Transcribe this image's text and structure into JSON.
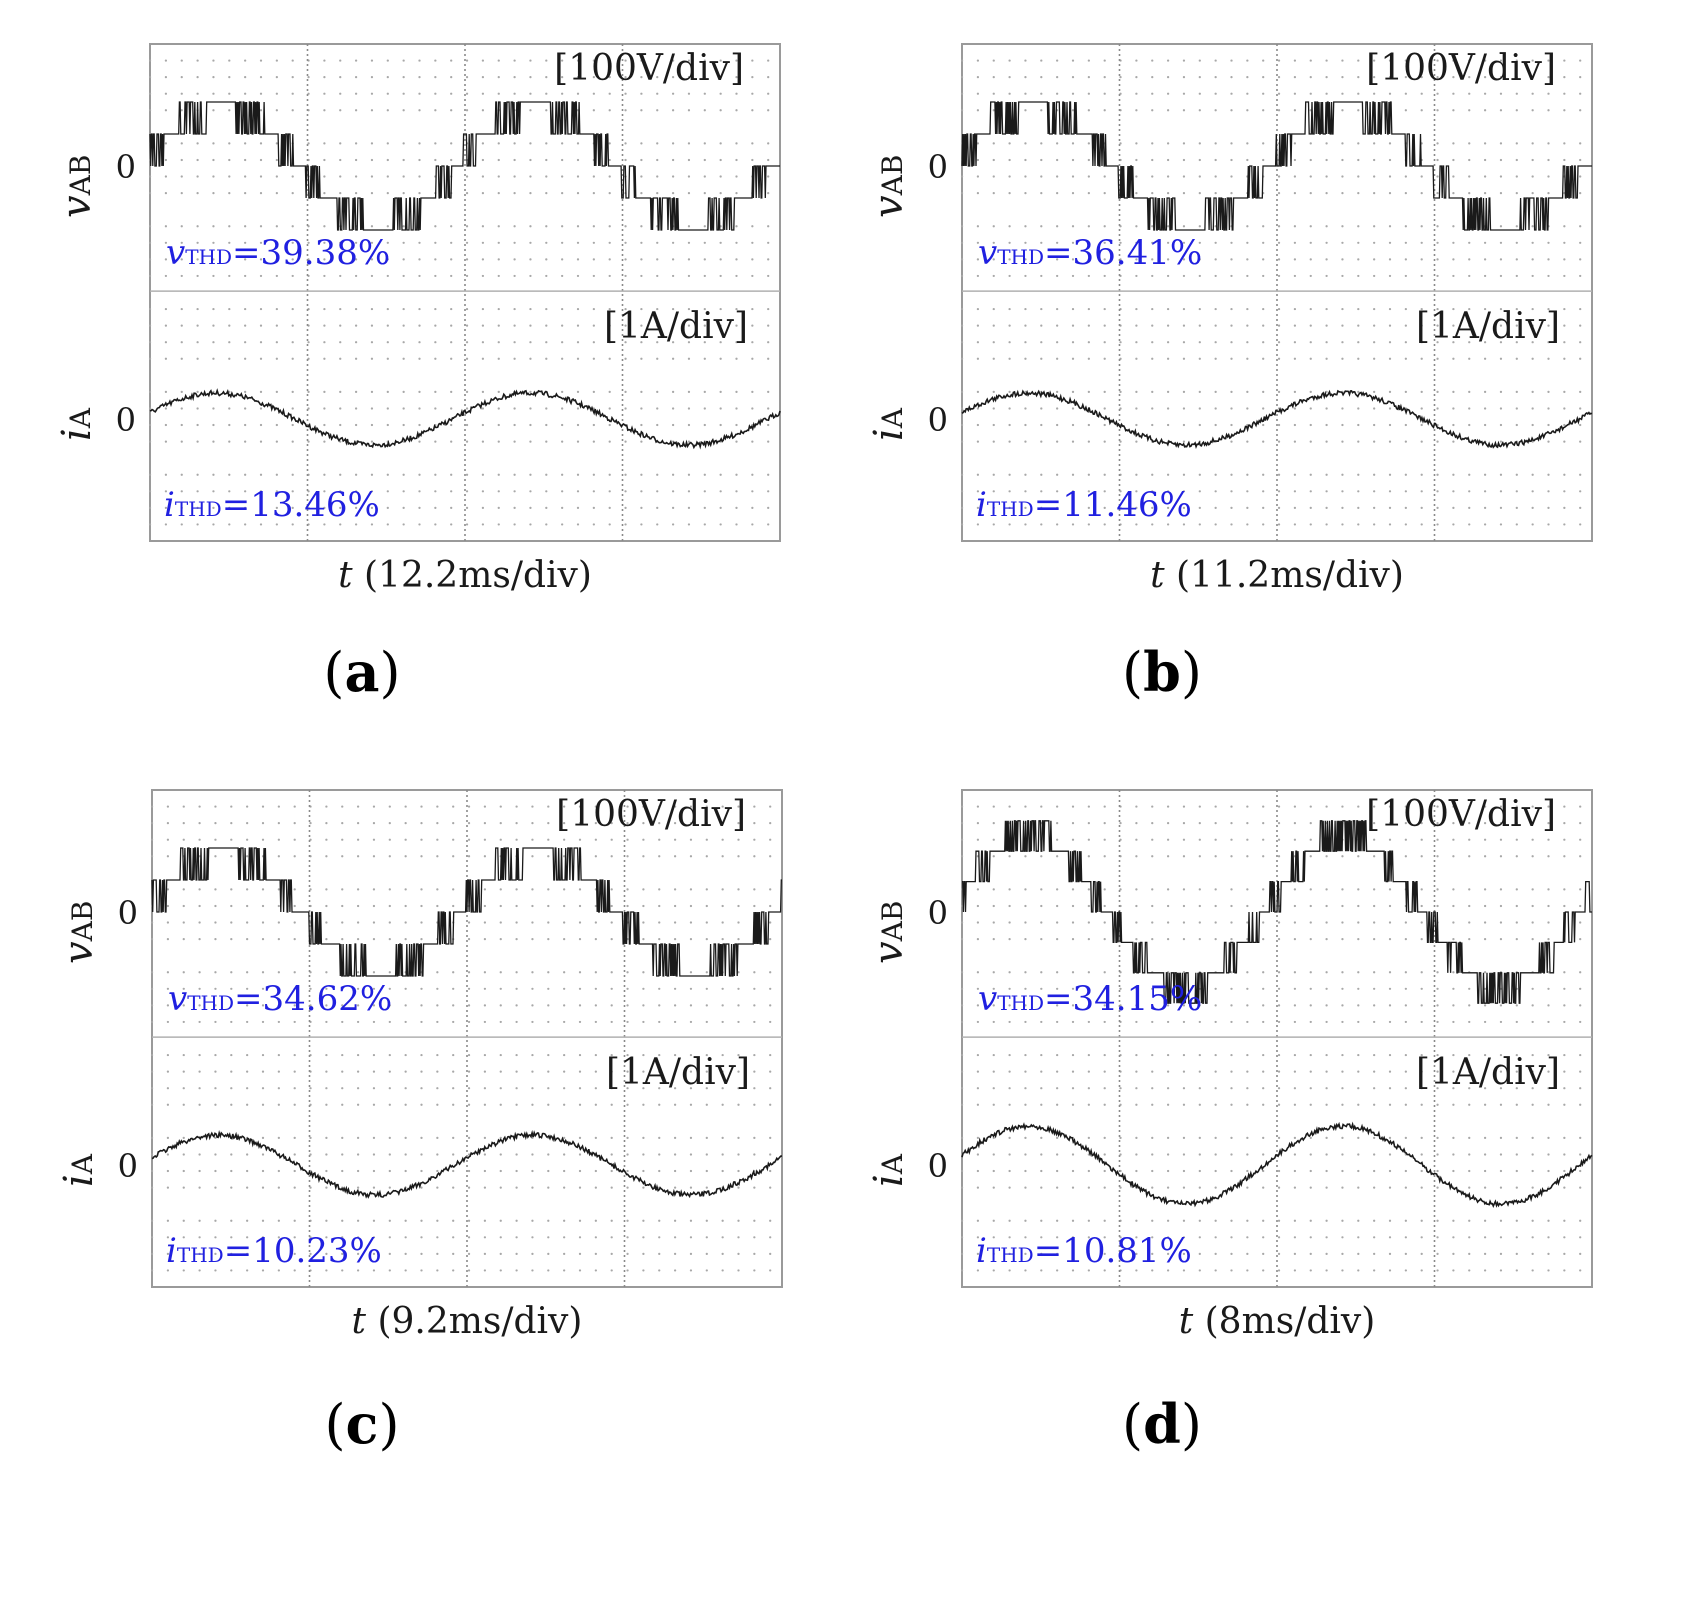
{
  "figure_labels": [
    "(a)",
    "(b)",
    "(c)",
    "(d)"
  ],
  "chart_data": [
    {
      "type": "line",
      "panel": "(a)",
      "title": "",
      "xlabel": "t (12.2ms/div)",
      "x_unit": "div",
      "x_range": [
        0,
        4
      ],
      "voltage_trace": {
        "name": "vAB",
        "scale_label": "[100V/div]",
        "zero_label": "0",
        "levels": 3,
        "level_step_div": 0.2,
        "periods": 2,
        "thd_prefix": "v",
        "thd_sub": "THD",
        "thd_value": "=39.38%"
      },
      "current_trace": {
        "name": "iA",
        "scale_label": "[1A/div]",
        "zero_label": "0",
        "amplitude_div": 0.2,
        "periods": 2,
        "thd_prefix": "i",
        "thd_sub": "THD",
        "thd_value": "=13.46%"
      }
    },
    {
      "type": "line",
      "panel": "(b)",
      "title": "",
      "xlabel": "t (11.2ms/div)",
      "x_unit": "div",
      "x_range": [
        0,
        4
      ],
      "voltage_trace": {
        "name": "vAB",
        "scale_label": "[100V/div]",
        "zero_label": "0",
        "levels": 3,
        "level_step_div": 0.2,
        "periods": 2,
        "thd_prefix": "v",
        "thd_sub": "THD",
        "thd_value": "=36.41%"
      },
      "current_trace": {
        "name": "iA",
        "scale_label": "[1A/div]",
        "zero_label": "0",
        "amplitude_div": 0.2,
        "periods": 2,
        "thd_prefix": "i",
        "thd_sub": "THD",
        "thd_value": "=11.46%"
      }
    },
    {
      "type": "line",
      "panel": "(c)",
      "title": "",
      "xlabel": "t (9.2ms/div)",
      "x_unit": "div",
      "x_range": [
        0,
        4
      ],
      "voltage_trace": {
        "name": "vAB",
        "scale_label": "[100V/div]",
        "zero_label": "0",
        "levels": 3,
        "level_step_div": 0.2,
        "periods": 2,
        "thd_prefix": "v",
        "thd_sub": "THD",
        "thd_value": "=34.62%"
      },
      "current_trace": {
        "name": "iA",
        "scale_label": "[1A/div]",
        "zero_label": "0",
        "amplitude_div": 0.23,
        "periods": 2,
        "thd_prefix": "i",
        "thd_sub": "THD",
        "thd_value": "=10.23%"
      }
    },
    {
      "type": "line",
      "panel": "(d)",
      "title": "",
      "xlabel": "t (8ms/div)",
      "x_unit": "div",
      "x_range": [
        0,
        4
      ],
      "voltage_trace": {
        "name": "vAB",
        "scale_label": "[100V/div]",
        "zero_label": "0",
        "levels": 4,
        "level_step_div": 0.2,
        "periods": 2,
        "thd_prefix": "v",
        "thd_sub": "THD",
        "thd_value": "=34.15%"
      },
      "current_trace": {
        "name": "iA",
        "scale_label": "[1A/div]",
        "zero_label": "0",
        "amplitude_div": 0.3,
        "periods": 2,
        "thd_prefix": "i",
        "thd_sub": "THD",
        "thd_value": "=10.81%"
      }
    }
  ]
}
